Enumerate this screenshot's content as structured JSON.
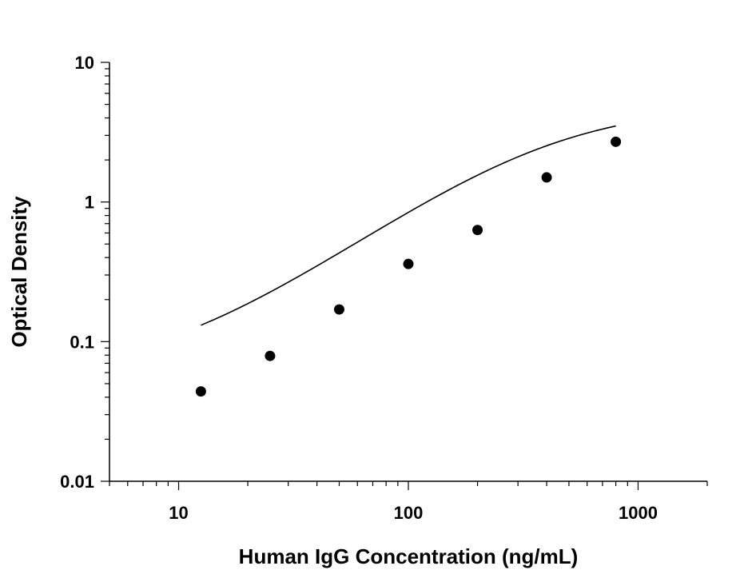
{
  "chart_data": {
    "type": "scatter",
    "title": "",
    "xlabel": "Human IgG Concentration (ng/mL)",
    "ylabel": "Optical Density",
    "x_scale": "log",
    "y_scale": "log",
    "xlim": [
      5,
      2000
    ],
    "ylim": [
      0.01,
      10
    ],
    "x_ticks": [
      {
        "value": 10,
        "label": "10"
      },
      {
        "value": 100,
        "label": "100"
      },
      {
        "value": 1000,
        "label": "1000"
      }
    ],
    "y_ticks": [
      {
        "value": 0.01,
        "label": "0.01"
      },
      {
        "value": 0.1,
        "label": "0.1"
      },
      {
        "value": 1,
        "label": "1"
      },
      {
        "value": 10,
        "label": "10"
      }
    ],
    "grid": false,
    "legend": "none",
    "series": [
      {
        "x": [
          12.5,
          25,
          50,
          100,
          200,
          400,
          800
        ],
        "y": [
          0.044,
          0.079,
          0.17,
          0.36,
          0.63,
          1.5,
          2.7
        ],
        "marker": "filled-circle",
        "color": "#000000"
      }
    ],
    "fit_curve": {
      "type": "4PL",
      "color": "#000000",
      "x_range": [
        12.5,
        800
      ],
      "bottom": 0.055,
      "top": 5.0,
      "ec50": 400,
      "hill": 1.2
    }
  }
}
